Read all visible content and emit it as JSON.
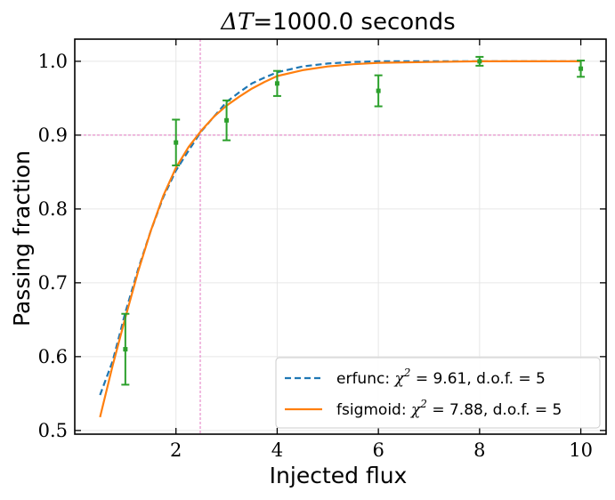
{
  "chart_data": {
    "type": "line",
    "title": {
      "math": "ΔT",
      "text": "=1000.0 seconds"
    },
    "xlabel": "Injected flux",
    "ylabel": "Passing fraction",
    "xlim": [
      0.0,
      10.5
    ],
    "ylim": [
      0.495,
      1.03
    ],
    "xticks": [
      2,
      4,
      6,
      8,
      10
    ],
    "xtick_labels": [
      "2",
      "4",
      "6",
      "8",
      "10"
    ],
    "yticks": [
      0.5,
      0.6,
      0.7,
      0.8,
      0.9,
      1.0
    ],
    "ytick_labels": [
      "0.5",
      "0.6",
      "0.7",
      "0.8",
      "0.9",
      "1.0"
    ],
    "grid": true,
    "reference_lines": {
      "x": 2.48,
      "y": 0.9,
      "color": "#e377c2"
    },
    "data_points": {
      "color": "#2ca02c",
      "x": [
        1,
        2,
        3,
        4,
        6,
        8,
        10
      ],
      "y": [
        0.61,
        0.89,
        0.92,
        0.97,
        0.96,
        1.0,
        0.99
      ],
      "yerr": [
        0.048,
        0.031,
        0.027,
        0.017,
        0.021,
        0.006,
        0.011
      ]
    },
    "series": [
      {
        "name": "erfunc",
        "legend": {
          "prefix": "erfunc: ",
          "chi": "χ",
          "sup": "2",
          "stats": " = 9.61, d.o.f. = 5"
        },
        "color": "#1f77b4",
        "style": "dashed",
        "x": [
          0.5,
          0.75,
          1.0,
          1.25,
          1.5,
          1.75,
          2.0,
          2.25,
          2.5,
          2.75,
          3.0,
          3.25,
          3.5,
          3.75,
          4.0,
          4.5,
          5.0,
          5.5,
          6.0,
          7.0,
          8.0,
          9.0,
          10.0
        ],
        "y": [
          0.548,
          0.594,
          0.66,
          0.718,
          0.77,
          0.816,
          0.852,
          0.879,
          0.905,
          0.925,
          0.945,
          0.958,
          0.97,
          0.978,
          0.985,
          0.993,
          0.997,
          0.999,
          1.0,
          1.0,
          1.0,
          1.0,
          1.0
        ]
      },
      {
        "name": "fsigmoid",
        "legend": {
          "prefix": "fsigmoid: ",
          "chi": "χ",
          "sup": "2",
          "stats": " = 7.88, d.o.f. = 5"
        },
        "color": "#ff7f0e",
        "style": "solid",
        "x": [
          0.5,
          0.75,
          1.0,
          1.25,
          1.5,
          1.75,
          2.0,
          2.25,
          2.5,
          2.75,
          3.0,
          3.25,
          3.5,
          3.75,
          4.0,
          4.5,
          5.0,
          5.5,
          6.0,
          7.0,
          8.0,
          9.0,
          10.0
        ],
        "y": [
          0.518,
          0.588,
          0.653,
          0.715,
          0.77,
          0.818,
          0.856,
          0.884,
          0.906,
          0.925,
          0.94,
          0.952,
          0.963,
          0.972,
          0.98,
          0.988,
          0.993,
          0.996,
          0.998,
          0.999,
          1.0,
          1.0,
          1.0
        ]
      }
    ],
    "legend_position": "lower-right"
  }
}
